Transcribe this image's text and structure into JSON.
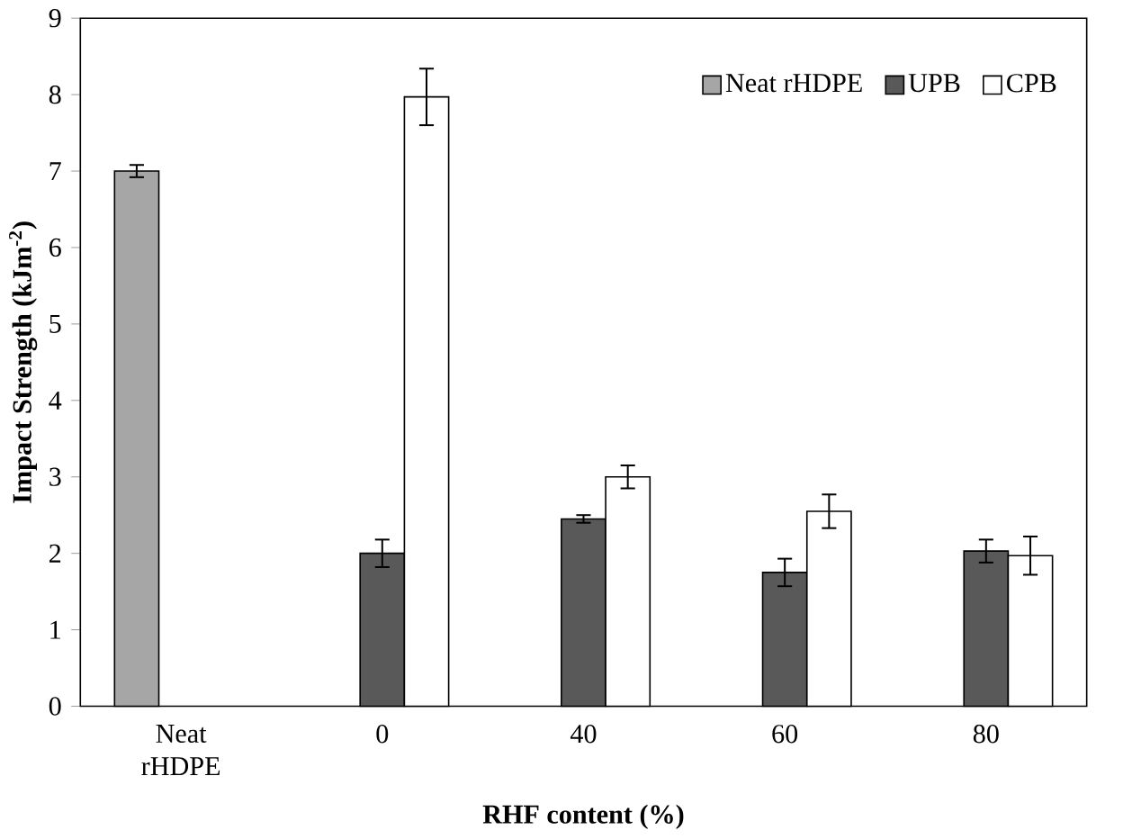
{
  "chart_data": {
    "type": "bar",
    "xlabel": "RHF content (%)",
    "ylabel": "Impact Strength (kJm$^{-2}$)",
    "categories": [
      "Neat rHDPE",
      "0",
      "40",
      "60",
      "80"
    ],
    "series": [
      {
        "name": "Neat rHDPE",
        "color": "#a6a6a6",
        "values": [
          7.0,
          null,
          null,
          null,
          null
        ],
        "errors": [
          0.08,
          null,
          null,
          null,
          null
        ]
      },
      {
        "name": "UPB",
        "color": "#595959",
        "values": [
          null,
          2.0,
          2.45,
          1.75,
          2.03
        ],
        "errors": [
          null,
          0.18,
          0.05,
          0.18,
          0.15
        ]
      },
      {
        "name": "CPB",
        "color": "#ffffff",
        "values": [
          null,
          7.97,
          3.0,
          2.55,
          1.97
        ],
        "errors": [
          null,
          0.37,
          0.15,
          0.22,
          0.25
        ]
      }
    ],
    "ylim": [
      0,
      9
    ],
    "yticks": [
      0,
      1,
      2,
      3,
      4,
      5,
      6,
      7,
      8,
      9
    ],
    "legend": "top right",
    "grid": false
  }
}
